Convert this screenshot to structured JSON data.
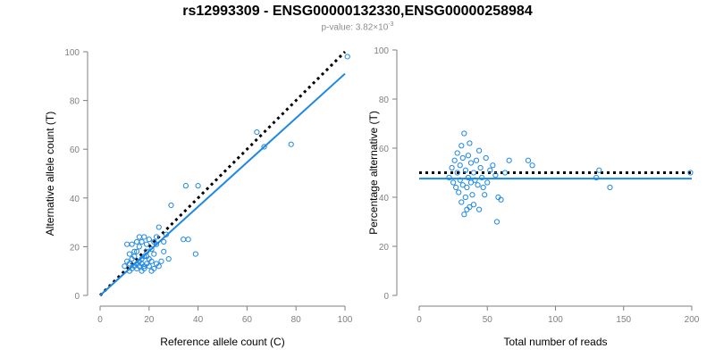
{
  "header": {
    "title": "rs12993309 - ENSG00000132330,ENSG00000258984",
    "pvalue_label": "p-value: 3.82×10",
    "pvalue_exponent": "-3"
  },
  "colors": {
    "accent": "#1e88e5",
    "axis": "#7f7f7f",
    "reference_line": "#000000"
  },
  "chart_data": [
    {
      "type": "scatter",
      "xlabel": "Reference allele count (C)",
      "ylabel": "Alternative allele count (T)",
      "xlim": [
        0,
        100
      ],
      "ylim": [
        0,
        100
      ],
      "xticks": [
        0,
        20,
        40,
        60,
        80,
        100
      ],
      "yticks": [
        0,
        20,
        40,
        60,
        80,
        100
      ],
      "grid": false,
      "reference_line": {
        "style": "dotted",
        "color": "#000000",
        "from": [
          0,
          0
        ],
        "to": [
          100,
          100
        ]
      },
      "fit_line": {
        "color": "#1e88e5",
        "from": [
          0,
          0
        ],
        "to": [
          100,
          91
        ]
      },
      "points": [
        [
          10,
          12
        ],
        [
          11,
          14
        ],
        [
          12,
          10
        ],
        [
          12,
          13
        ],
        [
          13,
          11
        ],
        [
          13,
          15
        ],
        [
          14,
          12
        ],
        [
          14,
          16
        ],
        [
          15,
          11
        ],
        [
          15,
          13
        ],
        [
          15,
          18
        ],
        [
          16,
          12
        ],
        [
          16,
          14
        ],
        [
          16,
          20
        ],
        [
          17,
          13
        ],
        [
          17,
          15
        ],
        [
          17,
          22
        ],
        [
          18,
          11
        ],
        [
          18,
          12
        ],
        [
          18,
          16
        ],
        [
          18,
          24
        ],
        [
          19,
          13
        ],
        [
          19,
          18
        ],
        [
          19,
          21
        ],
        [
          20,
          12
        ],
        [
          20,
          15
        ],
        [
          20,
          23
        ],
        [
          21,
          10
        ],
        [
          21,
          14
        ],
        [
          21,
          19
        ],
        [
          22,
          11
        ],
        [
          22,
          17
        ],
        [
          22,
          22
        ],
        [
          23,
          13
        ],
        [
          23,
          21
        ],
        [
          24,
          12
        ],
        [
          24,
          28
        ],
        [
          25,
          14
        ],
        [
          26,
          18
        ],
        [
          26,
          22
        ],
        [
          27,
          25
        ],
        [
          28,
          15
        ],
        [
          29,
          37
        ],
        [
          11,
          21
        ],
        [
          13,
          21
        ],
        [
          16,
          24
        ],
        [
          14,
          18
        ],
        [
          12,
          17
        ],
        [
          15,
          22
        ],
        [
          19,
          16
        ],
        [
          17,
          10
        ],
        [
          23,
          24
        ],
        [
          34,
          23
        ],
        [
          35,
          45
        ],
        [
          36,
          23
        ],
        [
          39,
          17
        ],
        [
          40,
          45
        ],
        [
          64,
          67
        ],
        [
          67,
          61
        ],
        [
          78,
          62
        ],
        [
          101,
          98
        ]
      ]
    },
    {
      "type": "scatter",
      "xlabel": "Total number of reads",
      "ylabel": "Percentage alternative (T)",
      "xlim": [
        0,
        200
      ],
      "ylim": [
        0,
        100
      ],
      "xticks": [
        0,
        50,
        100,
        150,
        200
      ],
      "yticks": [
        0,
        20,
        40,
        60,
        80,
        100
      ],
      "grid": false,
      "reference_line": {
        "style": "dotted",
        "color": "#000000",
        "y": 50
      },
      "fit_line": {
        "color": "#1e88e5",
        "y": 47.6
      },
      "points": [
        [
          22,
          48
        ],
        [
          24,
          52
        ],
        [
          25,
          46
        ],
        [
          26,
          55
        ],
        [
          27,
          44
        ],
        [
          28,
          50
        ],
        [
          28,
          58
        ],
        [
          29,
          42
        ],
        [
          30,
          53
        ],
        [
          30,
          47
        ],
        [
          31,
          38
        ],
        [
          31,
          61
        ],
        [
          32,
          45
        ],
        [
          32,
          56
        ],
        [
          33,
          33
        ],
        [
          33,
          66
        ],
        [
          34,
          40
        ],
        [
          34,
          51
        ],
        [
          35,
          44
        ],
        [
          35,
          35
        ],
        [
          36,
          48
        ],
        [
          36,
          57
        ],
        [
          37,
          36
        ],
        [
          37,
          62
        ],
        [
          38,
          46
        ],
        [
          38,
          54
        ],
        [
          39,
          41
        ],
        [
          40,
          50
        ],
        [
          40,
          37
        ],
        [
          41,
          47
        ],
        [
          42,
          55
        ],
        [
          43,
          45
        ],
        [
          44,
          59
        ],
        [
          44,
          35
        ],
        [
          45,
          52
        ],
        [
          46,
          48
        ],
        [
          47,
          44
        ],
        [
          48,
          41
        ],
        [
          49,
          56
        ],
        [
          50,
          46
        ],
        [
          52,
          51
        ],
        [
          54,
          53
        ],
        [
          56,
          49
        ],
        [
          57,
          30
        ],
        [
          58,
          40
        ],
        [
          60,
          39
        ],
        [
          63,
          50
        ],
        [
          66,
          55
        ],
        [
          80,
          55
        ],
        [
          83,
          53
        ],
        [
          130,
          48
        ],
        [
          132,
          51
        ],
        [
          140,
          44
        ],
        [
          199,
          50
        ]
      ]
    }
  ]
}
